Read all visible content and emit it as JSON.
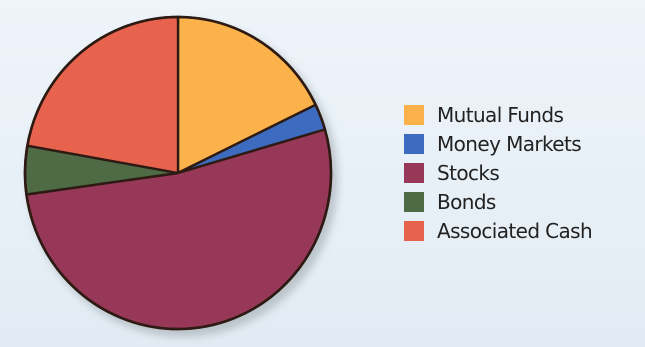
{
  "chart_data": {
    "type": "pie",
    "title": "",
    "start_angle_deg": 0,
    "direction": "clockwise",
    "legend_position": "right",
    "slices": [
      {
        "label": "Mutual Funds",
        "value": 17.8,
        "color": "#fbb24a"
      },
      {
        "label": "Money Markets",
        "value": 2.7,
        "color": "#3d6bbf"
      },
      {
        "label": "Stocks",
        "value": 52.3,
        "color": "#973858"
      },
      {
        "label": "Bonds",
        "value": 5.0,
        "color": "#4f6b45"
      },
      {
        "label": "Associated Cash",
        "value": 22.2,
        "color": "#e8634e"
      }
    ],
    "outline_color": "#2d1a12",
    "shadow_color": "#9aa3a8"
  }
}
